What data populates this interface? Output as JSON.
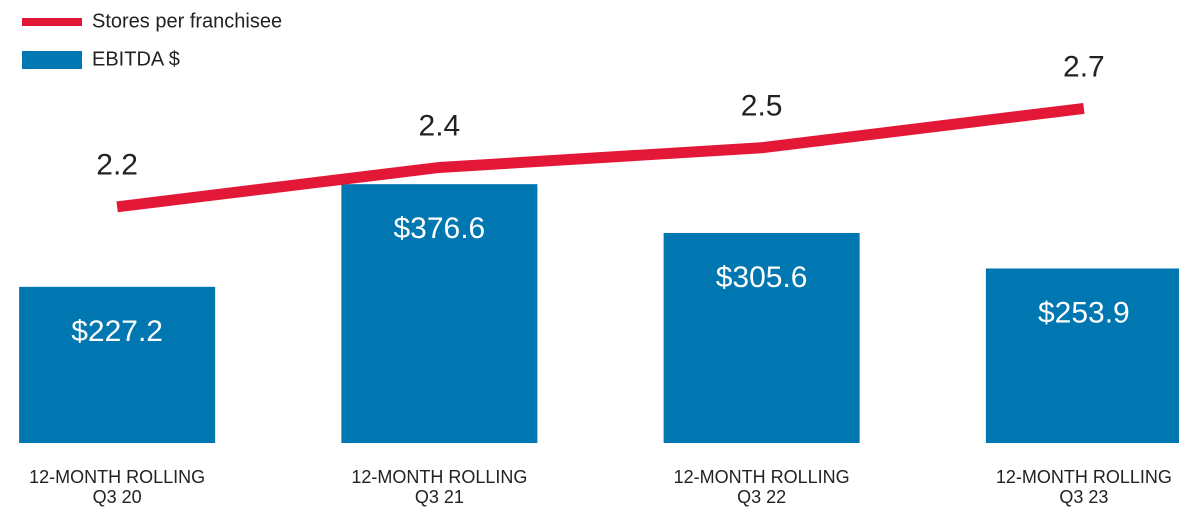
{
  "chart_data": {
    "type": "bar-line",
    "categories": [
      "12-MONTH ROLLING\nQ3 20",
      "12-MONTH ROLLING\nQ3 21",
      "12-MONTH ROLLING\nQ3 22",
      "12-MONTH ROLLING\nQ3 23"
    ],
    "series": [
      {
        "name": "Stores per franchisee",
        "type": "line",
        "color": "#e31837",
        "axis": "y2",
        "values": [
          2.2,
          2.4,
          2.5,
          2.7
        ]
      },
      {
        "name": "EBITDA $",
        "type": "bar",
        "color": "#0077b0",
        "values": [
          227.2,
          376.6,
          305.6,
          253.9
        ],
        "value_labels": [
          "$227.2",
          "$376.6",
          "$305.6",
          "$253.9"
        ]
      }
    ],
    "ylim": [
      0,
      630
    ],
    "y2lim": [
      1,
      3.2
    ],
    "grid": false,
    "legend": "top-left"
  }
}
